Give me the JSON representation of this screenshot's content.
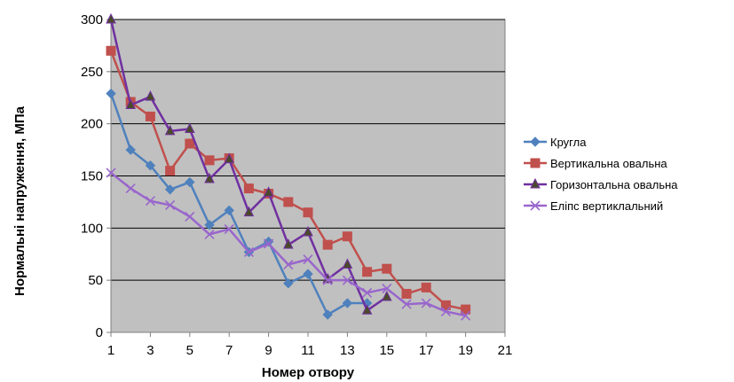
{
  "chart_data": {
    "type": "line",
    "title": "",
    "xlabel": "Номер отвору",
    "ylabel": "Нормальні напруження, МПа",
    "xlim": [
      1,
      21
    ],
    "ylim": [
      0,
      300
    ],
    "x_ticks": [
      "1",
      "3",
      "5",
      "7",
      "9",
      "11",
      "13",
      "15",
      "17",
      "19",
      "21"
    ],
    "y_ticks": [
      "0",
      "50",
      "100",
      "150",
      "200",
      "250",
      "300"
    ],
    "grid": true,
    "legend_position": "right",
    "plot_background": "#c0c0c0",
    "series": [
      {
        "name": "Кругла",
        "color": "#4f81bd",
        "marker": "diamond",
        "x": [
          1,
          2,
          3,
          4,
          5,
          6,
          7,
          8,
          9,
          10,
          11,
          12,
          13,
          14
        ],
        "y": [
          229,
          175,
          160,
          137,
          144,
          103,
          117,
          77,
          87,
          47,
          56,
          17,
          28,
          28
        ]
      },
      {
        "name": "Вертикальна овальна",
        "color": "#c0504d",
        "marker": "square",
        "x": [
          1,
          2,
          3,
          4,
          5,
          6,
          7,
          8,
          9,
          10,
          11,
          12,
          13,
          14,
          15,
          16,
          17,
          18,
          19
        ],
        "y": [
          270,
          221,
          207,
          155,
          181,
          165,
          167,
          138,
          133,
          125,
          115,
          84,
          92,
          58,
          61,
          37,
          43,
          26,
          22
        ]
      },
      {
        "name": "Горизонтальна овальна",
        "color": "#7030a0",
        "marker": "triangle",
        "x": [
          1,
          2,
          3,
          4,
          5,
          6,
          7,
          8,
          9,
          10,
          11,
          12,
          13,
          14,
          15
        ],
        "y": [
          300,
          218,
          226,
          193,
          195,
          147,
          166,
          115,
          134,
          84,
          96,
          51,
          65,
          21,
          34
        ]
      },
      {
        "name": "Еліпс вертиклальний",
        "color": "#9966cc",
        "marker": "x",
        "x": [
          1,
          2,
          3,
          4,
          5,
          6,
          7,
          8,
          9,
          10,
          11,
          12,
          13,
          14,
          15,
          16,
          17,
          18,
          19
        ],
        "y": [
          153,
          138,
          126,
          122,
          111,
          94,
          99,
          77,
          85,
          65,
          70,
          50,
          50,
          38,
          42,
          27,
          28,
          20,
          16
        ]
      }
    ]
  }
}
